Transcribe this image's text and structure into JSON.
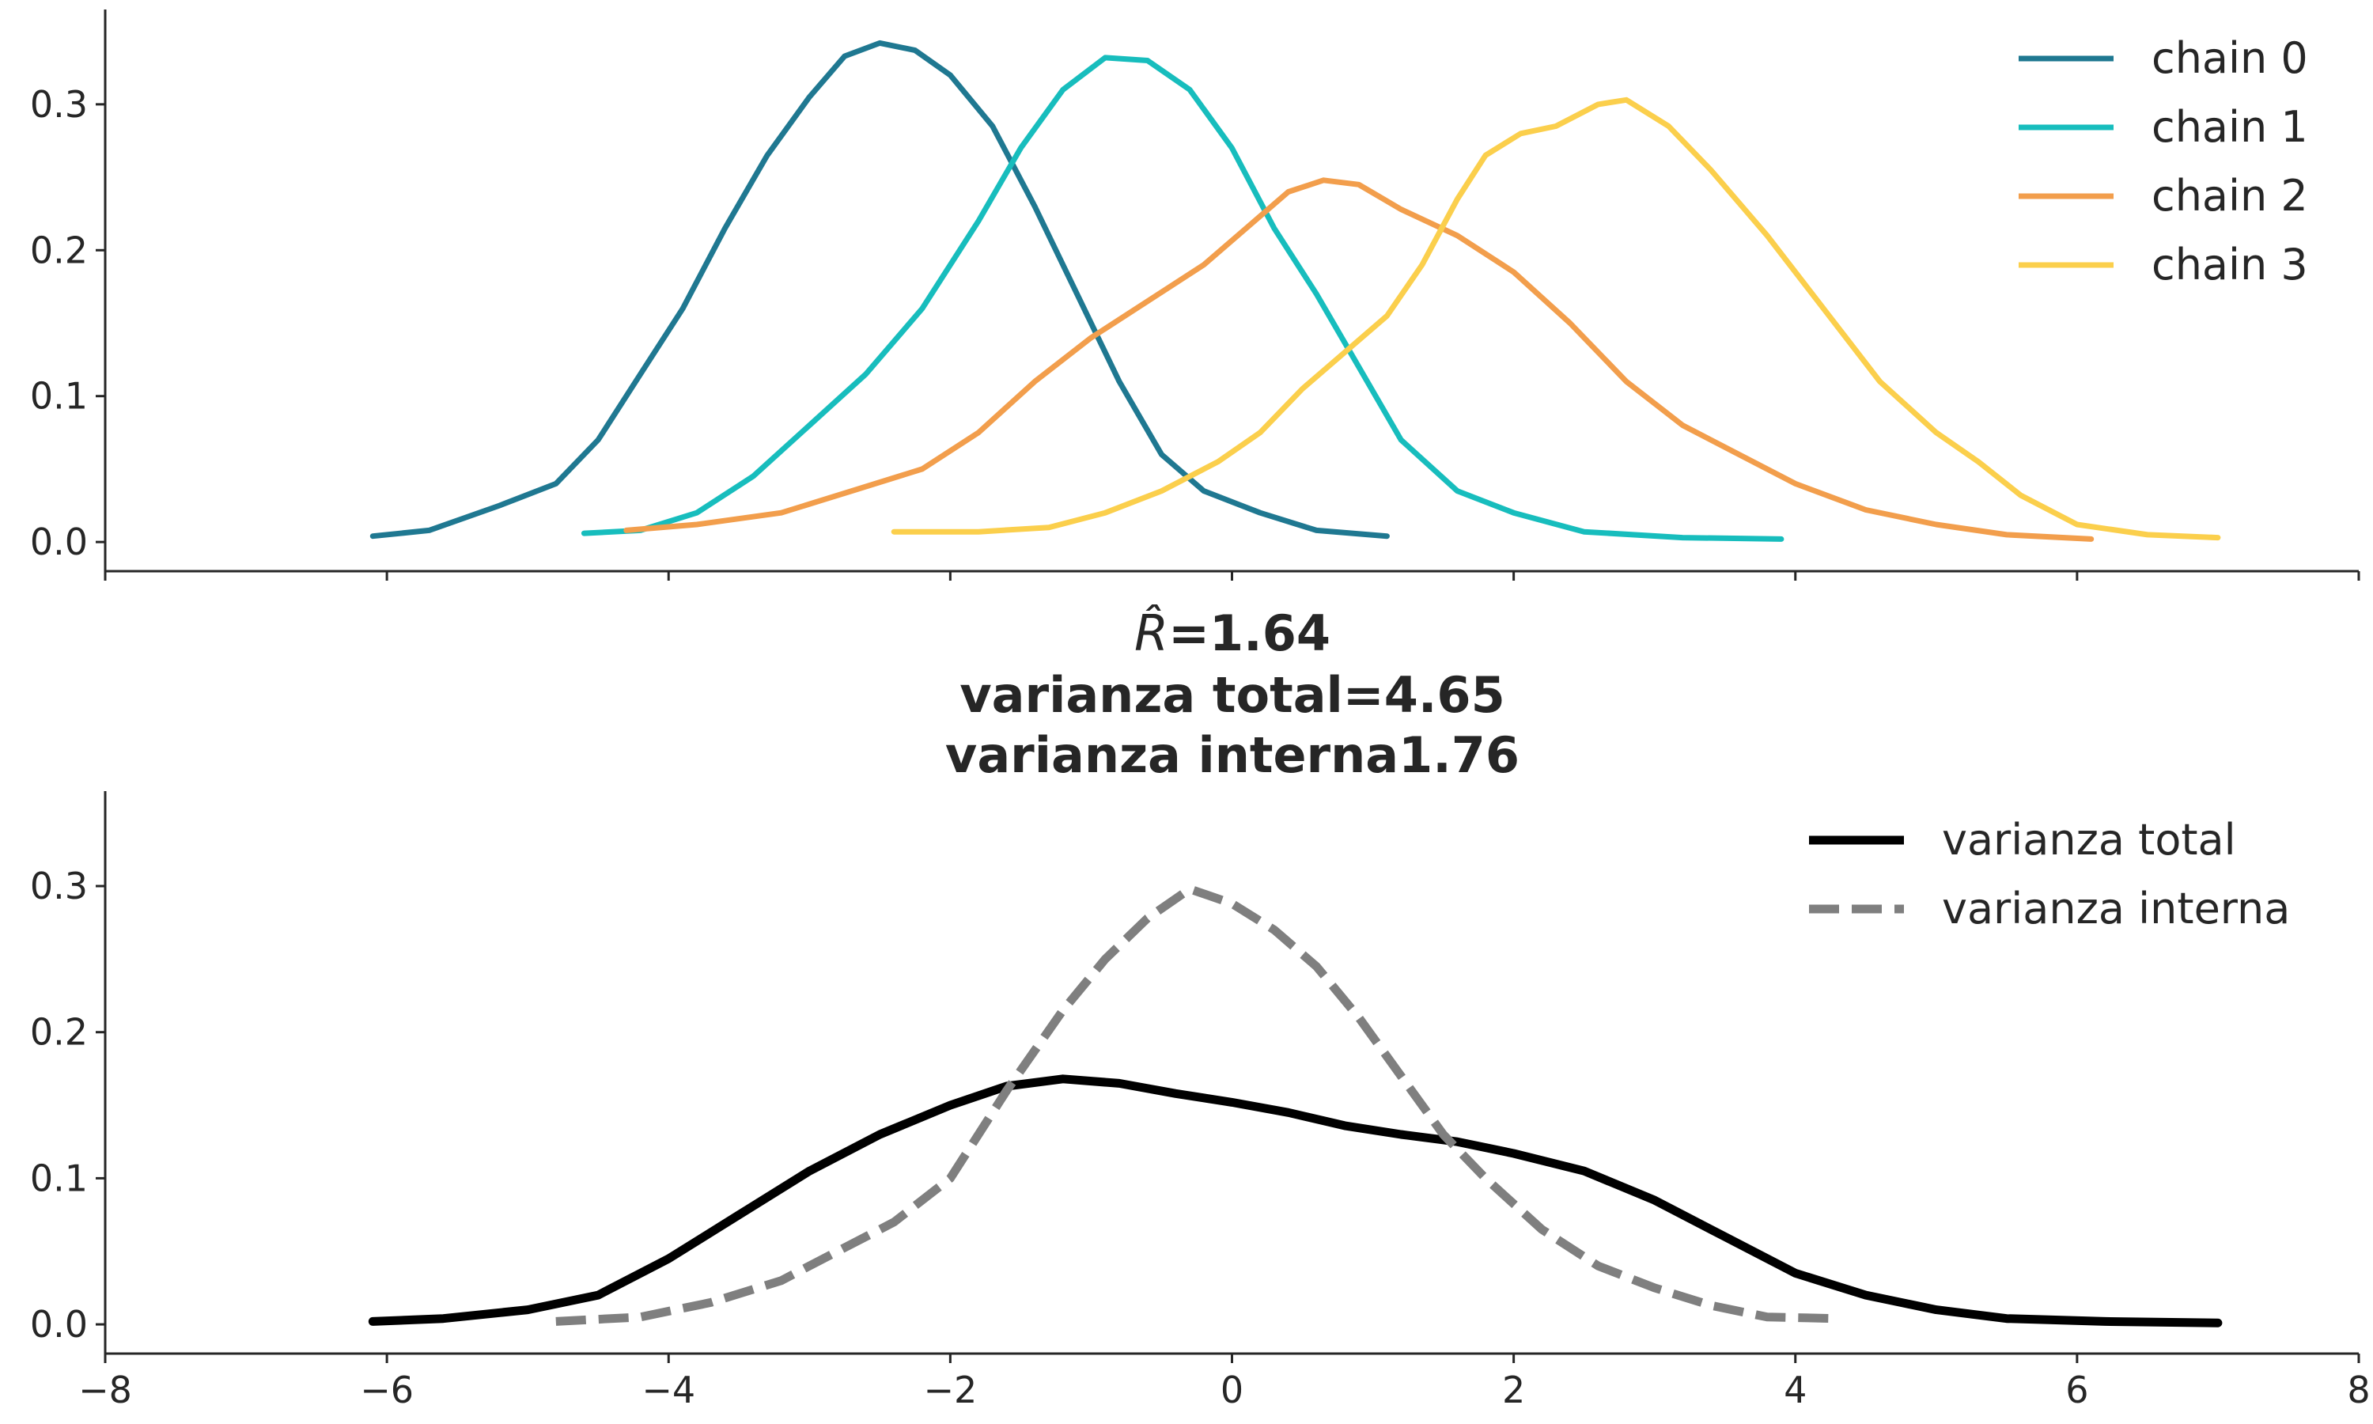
{
  "chart_data": [
    {
      "type": "line",
      "title": "",
      "xlabel": "",
      "ylabel": "",
      "xlim": [
        -8,
        8
      ],
      "ylim": [
        -0.02,
        0.365
      ],
      "xticks": [
        -8,
        -6,
        -4,
        -2,
        0,
        2,
        4,
        6,
        8
      ],
      "xtick_labels_visible": false,
      "yticks": [
        0.0,
        0.1,
        0.2,
        0.3
      ],
      "ytick_labels": [
        "0.0",
        "0.1",
        "0.2",
        "0.3"
      ],
      "grid": false,
      "legend_position": "top-right",
      "series": [
        {
          "name": "chain 0",
          "color": "#1f7891",
          "points": [
            [
              -6.1,
              0.004
            ],
            [
              -5.7,
              0.008
            ],
            [
              -5.2,
              0.025
            ],
            [
              -4.8,
              0.04
            ],
            [
              -4.5,
              0.07
            ],
            [
              -4.2,
              0.115
            ],
            [
              -3.9,
              0.16
            ],
            [
              -3.6,
              0.215
            ],
            [
              -3.3,
              0.265
            ],
            [
              -3.0,
              0.305
            ],
            [
              -2.75,
              0.333
            ],
            [
              -2.5,
              0.342
            ],
            [
              -2.25,
              0.337
            ],
            [
              -2.0,
              0.32
            ],
            [
              -1.7,
              0.285
            ],
            [
              -1.4,
              0.23
            ],
            [
              -1.1,
              0.17
            ],
            [
              -0.8,
              0.11
            ],
            [
              -0.5,
              0.06
            ],
            [
              -0.2,
              0.035
            ],
            [
              0.2,
              0.02
            ],
            [
              0.6,
              0.008
            ],
            [
              1.1,
              0.004
            ]
          ]
        },
        {
          "name": "chain 1",
          "color": "#17bdbd",
          "points": [
            [
              -4.6,
              0.006
            ],
            [
              -4.2,
              0.008
            ],
            [
              -3.8,
              0.02
            ],
            [
              -3.4,
              0.045
            ],
            [
              -3.0,
              0.08
            ],
            [
              -2.6,
              0.115
            ],
            [
              -2.2,
              0.16
            ],
            [
              -1.8,
              0.22
            ],
            [
              -1.5,
              0.27
            ],
            [
              -1.2,
              0.31
            ],
            [
              -0.9,
              0.332
            ],
            [
              -0.6,
              0.33
            ],
            [
              -0.3,
              0.31
            ],
            [
              0.0,
              0.27
            ],
            [
              0.3,
              0.215
            ],
            [
              0.6,
              0.17
            ],
            [
              0.9,
              0.12
            ],
            [
              1.2,
              0.07
            ],
            [
              1.6,
              0.035
            ],
            [
              2.0,
              0.02
            ],
            [
              2.5,
              0.007
            ],
            [
              3.2,
              0.003
            ],
            [
              3.9,
              0.002
            ]
          ]
        },
        {
          "name": "chain 2",
          "color": "#f29e4c",
          "points": [
            [
              -4.3,
              0.008
            ],
            [
              -3.8,
              0.012
            ],
            [
              -3.2,
              0.02
            ],
            [
              -2.7,
              0.035
            ],
            [
              -2.2,
              0.05
            ],
            [
              -1.8,
              0.075
            ],
            [
              -1.4,
              0.11
            ],
            [
              -1.0,
              0.14
            ],
            [
              -0.6,
              0.165
            ],
            [
              -0.2,
              0.19
            ],
            [
              0.1,
              0.215
            ],
            [
              0.4,
              0.24
            ],
            [
              0.65,
              0.248
            ],
            [
              0.9,
              0.245
            ],
            [
              1.2,
              0.228
            ],
            [
              1.6,
              0.21
            ],
            [
              2.0,
              0.185
            ],
            [
              2.4,
              0.15
            ],
            [
              2.8,
              0.11
            ],
            [
              3.2,
              0.08
            ],
            [
              3.6,
              0.06
            ],
            [
              4.0,
              0.04
            ],
            [
              4.5,
              0.022
            ],
            [
              5.0,
              0.012
            ],
            [
              5.5,
              0.005
            ],
            [
              6.1,
              0.002
            ]
          ]
        },
        {
          "name": "chain 3",
          "color": "#fbcf4c",
          "points": [
            [
              -2.4,
              0.007
            ],
            [
              -1.8,
              0.007
            ],
            [
              -1.3,
              0.01
            ],
            [
              -0.9,
              0.02
            ],
            [
              -0.5,
              0.035
            ],
            [
              -0.1,
              0.055
            ],
            [
              0.2,
              0.075
            ],
            [
              0.5,
              0.105
            ],
            [
              0.8,
              0.13
            ],
            [
              1.1,
              0.155
            ],
            [
              1.35,
              0.19
            ],
            [
              1.6,
              0.235
            ],
            [
              1.8,
              0.265
            ],
            [
              2.05,
              0.28
            ],
            [
              2.3,
              0.285
            ],
            [
              2.6,
              0.3
            ],
            [
              2.8,
              0.303
            ],
            [
              3.1,
              0.285
            ],
            [
              3.4,
              0.255
            ],
            [
              3.8,
              0.21
            ],
            [
              4.2,
              0.16
            ],
            [
              4.6,
              0.11
            ],
            [
              5.0,
              0.075
            ],
            [
              5.3,
              0.055
            ],
            [
              5.6,
              0.032
            ],
            [
              6.0,
              0.012
            ],
            [
              6.5,
              0.005
            ],
            [
              7.0,
              0.003
            ]
          ]
        }
      ]
    },
    {
      "type": "line",
      "title": "",
      "title_parts": {
        "rhat_symbol": "R̂",
        "line1_rest": "=1.64",
        "line2": "varianza total=4.65",
        "line3": "varianza interna1.76"
      },
      "xlabel": "",
      "ylabel": "",
      "xlim": [
        -8,
        8
      ],
      "ylim": [
        -0.02,
        0.365
      ],
      "xticks": [
        -8,
        -6,
        -4,
        -2,
        0,
        2,
        4,
        6,
        8
      ],
      "xtick_labels": [
        "−8",
        "−6",
        "−4",
        "−2",
        "0",
        "2",
        "4",
        "6",
        "8"
      ],
      "yticks": [
        0.0,
        0.1,
        0.2,
        0.3
      ],
      "ytick_labels": [
        "0.0",
        "0.1",
        "0.2",
        "0.3"
      ],
      "grid": false,
      "legend_position": "top-right",
      "series": [
        {
          "name": "varianza total",
          "color": "#000000",
          "style": "solid",
          "points": [
            [
              -6.1,
              0.002
            ],
            [
              -5.6,
              0.004
            ],
            [
              -5.0,
              0.01
            ],
            [
              -4.5,
              0.02
            ],
            [
              -4.0,
              0.045
            ],
            [
              -3.5,
              0.075
            ],
            [
              -3.0,
              0.105
            ],
            [
              -2.5,
              0.13
            ],
            [
              -2.0,
              0.15
            ],
            [
              -1.6,
              0.163
            ],
            [
              -1.2,
              0.168
            ],
            [
              -0.8,
              0.165
            ],
            [
              -0.4,
              0.158
            ],
            [
              0.0,
              0.152
            ],
            [
              0.4,
              0.145
            ],
            [
              0.8,
              0.136
            ],
            [
              1.2,
              0.13
            ],
            [
              1.6,
              0.125
            ],
            [
              2.0,
              0.117
            ],
            [
              2.5,
              0.105
            ],
            [
              3.0,
              0.085
            ],
            [
              3.5,
              0.06
            ],
            [
              4.0,
              0.035
            ],
            [
              4.5,
              0.02
            ],
            [
              5.0,
              0.01
            ],
            [
              5.5,
              0.004
            ],
            [
              6.2,
              0.002
            ],
            [
              7.0,
              0.001
            ]
          ]
        },
        {
          "name": "varianza interna",
          "color": "#7f7f7f",
          "style": "dashed",
          "points": [
            [
              -4.8,
              0.002
            ],
            [
              -4.2,
              0.005
            ],
            [
              -3.7,
              0.015
            ],
            [
              -3.2,
              0.03
            ],
            [
              -2.8,
              0.05
            ],
            [
              -2.4,
              0.07
            ],
            [
              -2.0,
              0.1
            ],
            [
              -1.6,
              0.16
            ],
            [
              -1.2,
              0.215
            ],
            [
              -0.9,
              0.25
            ],
            [
              -0.6,
              0.278
            ],
            [
              -0.3,
              0.298
            ],
            [
              0.0,
              0.288
            ],
            [
              0.3,
              0.27
            ],
            [
              0.6,
              0.245
            ],
            [
              0.9,
              0.21
            ],
            [
              1.2,
              0.17
            ],
            [
              1.5,
              0.13
            ],
            [
              1.8,
              0.1
            ],
            [
              2.2,
              0.065
            ],
            [
              2.6,
              0.04
            ],
            [
              3.0,
              0.025
            ],
            [
              3.4,
              0.013
            ],
            [
              3.8,
              0.005
            ],
            [
              4.3,
              0.004
            ]
          ]
        }
      ]
    }
  ]
}
